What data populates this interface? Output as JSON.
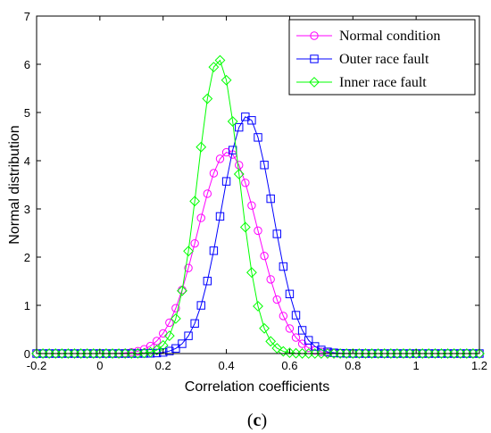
{
  "chart_data": {
    "type": "line",
    "title": "",
    "xlabel": "Correlation coefficients",
    "ylabel": "Normal distribution",
    "xlim": [
      -0.2,
      1.2
    ],
    "ylim": [
      0,
      7
    ],
    "xticks": [
      "-0.2",
      "0",
      "0.2",
      "0.4",
      "0.6",
      "0.8",
      "1",
      "1.2"
    ],
    "yticks": [
      "0",
      "1",
      "2",
      "3",
      "4",
      "5",
      "6",
      "7"
    ],
    "grid": false,
    "legend_position": "top-right",
    "series": [
      {
        "name": "Normal condition",
        "color": "#ff00ff",
        "marker": "circle",
        "mean": 0.405,
        "sd": 0.0955,
        "peak": 4.18
      },
      {
        "name": "Outer race fault",
        "color": "#0000ff",
        "marker": "square",
        "mean": 0.465,
        "sd": 0.0812,
        "peak": 4.92
      },
      {
        "name": "Inner race fault",
        "color": "#00ff00",
        "marker": "diamond",
        "mean": 0.375,
        "sd": 0.0654,
        "peak": 6.1
      }
    ],
    "x_samples": {
      "start": -0.2,
      "end": 1.2,
      "step": 0.02
    }
  },
  "caption": {
    "open": "(",
    "letter": "c",
    "close": ")"
  }
}
